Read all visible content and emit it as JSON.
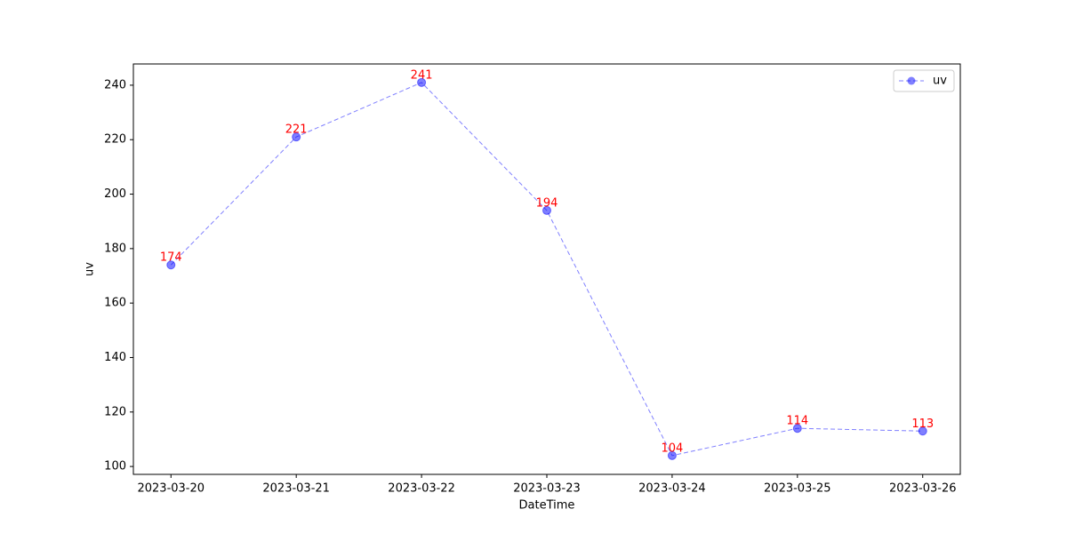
{
  "chart_data": {
    "type": "line",
    "x_label": "DateTime",
    "y_label": "uv",
    "categories": [
      "2023-03-20",
      "2023-03-21",
      "2023-03-22",
      "2023-03-23",
      "2023-03-24",
      "2023-03-25",
      "2023-03-26"
    ],
    "series": [
      {
        "name": "uv",
        "color": "#0000ff",
        "values": [
          174,
          221,
          241,
          194,
          104,
          114,
          113
        ]
      }
    ],
    "value_label_color": "#ff0000",
    "ylim": [
      97.1,
      247.8
    ],
    "yticks": [
      100,
      120,
      140,
      160,
      180,
      200,
      220,
      240
    ],
    "legend": "upper right",
    "line_style": "dashed",
    "marker": "circle"
  }
}
